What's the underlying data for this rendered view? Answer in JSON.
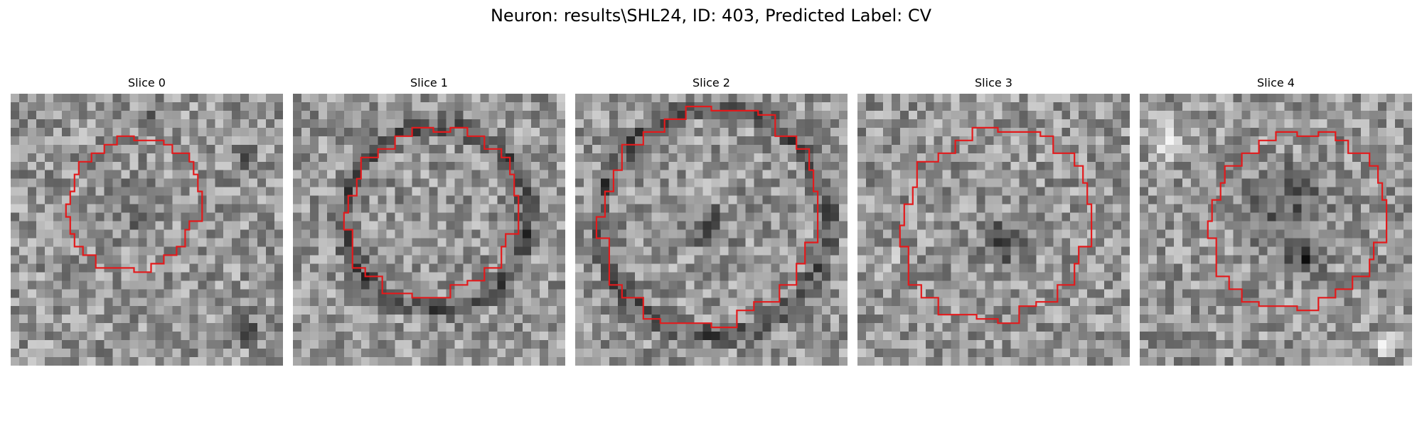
{
  "figure": {
    "title": "Neuron: results\\SHL24, ID: 403, Predicted Label: CV"
  },
  "panels": [
    {
      "title": "Slice 0"
    },
    {
      "title": "Slice 1"
    },
    {
      "title": "Slice 2"
    },
    {
      "title": "Slice 3"
    },
    {
      "title": "Slice 4"
    }
  ],
  "colors": {
    "background": "#ffffff",
    "contour": "#e31a1c"
  }
}
